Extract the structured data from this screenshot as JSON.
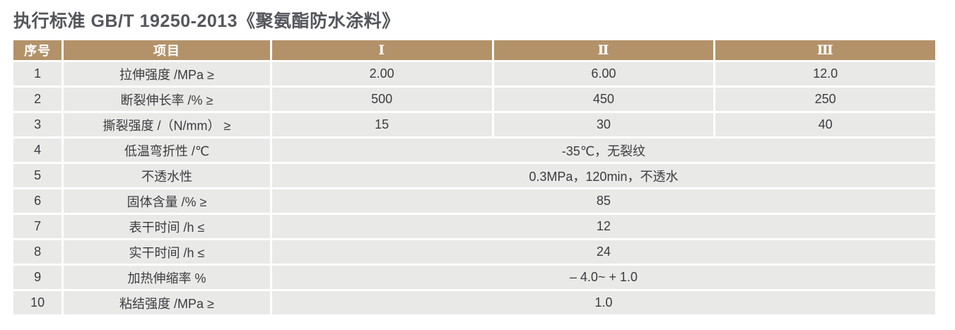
{
  "page": {
    "title": "执行标准 GB/T 19250-2013《聚氨酯防水涂料》"
  },
  "colors": {
    "header_bg": "#b39269",
    "header_text": "#ffffff",
    "row_bg": "#e9e9e8",
    "cell_text": "#3b3c3e",
    "title_text": "#54565b"
  },
  "table": {
    "headers": [
      "序号",
      "项目",
      "Ⅰ",
      "Ⅱ",
      "Ⅲ"
    ],
    "rows": [
      {
        "no": "1",
        "item": "拉伸强度 /MPa ≥",
        "values": [
          "2.00",
          "6.00",
          "12.0"
        ]
      },
      {
        "no": "2",
        "item": "断裂伸长率 /% ≥",
        "values": [
          "500",
          "450",
          "250"
        ]
      },
      {
        "no": "3",
        "item": "撕裂强度 /（N/mm） ≥",
        "values": [
          "15",
          "30",
          "40"
        ]
      },
      {
        "no": "4",
        "item": "低温弯折性 /℃",
        "merged_value": "-35℃，无裂纹"
      },
      {
        "no": "5",
        "item": "不透水性",
        "merged_value": "0.3MPa，120min，不透水"
      },
      {
        "no": "6",
        "item": "固体含量 /% ≥",
        "merged_value": "85"
      },
      {
        "no": "7",
        "item": "表干时间 /h ≤",
        "merged_value": "12"
      },
      {
        "no": "8",
        "item": "实干时间 /h ≤",
        "merged_value": "24"
      },
      {
        "no": "9",
        "item": "加热伸缩率 %",
        "merged_value": "– 4.0~ + 1.0"
      },
      {
        "no": "10",
        "item": "粘结强度 /MPa ≥",
        "merged_value": "1.0"
      }
    ]
  }
}
